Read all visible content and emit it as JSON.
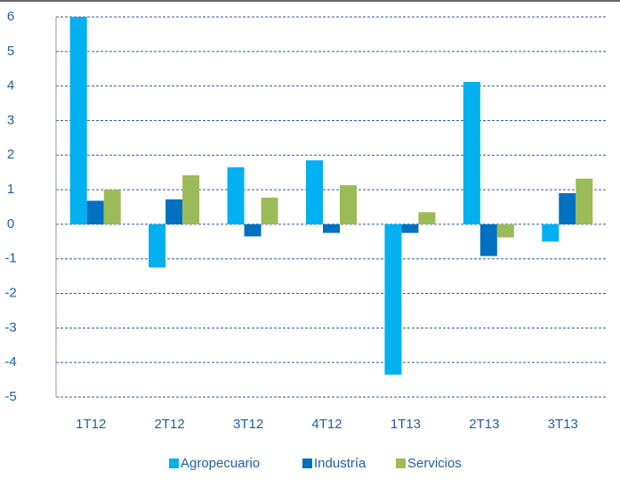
{
  "chart_data": {
    "type": "bar",
    "categories": [
      "1T12",
      "2T12",
      "3T12",
      "4T12",
      "1T13",
      "2T13",
      "3T13"
    ],
    "series": [
      {
        "name": "Agropecuario",
        "color": "#00b0f0",
        "values": [
          6.0,
          -1.25,
          1.65,
          1.85,
          -4.35,
          4.12,
          -0.5
        ]
      },
      {
        "name": "Industría",
        "color": "#0070c0",
        "values": [
          0.68,
          0.72,
          -0.35,
          -0.25,
          -0.25,
          -0.92,
          0.9
        ]
      },
      {
        "name": "Servicios",
        "color": "#9bbb59",
        "values": [
          1.0,
          1.42,
          0.77,
          1.13,
          0.35,
          -0.38,
          1.32
        ]
      }
    ],
    "ylim": [
      -5,
      6
    ],
    "yticks": [
      -5,
      -4,
      -3,
      -2,
      -1,
      0,
      1,
      2,
      3,
      4,
      5,
      6
    ],
    "grid": true,
    "legend": "bottom"
  }
}
